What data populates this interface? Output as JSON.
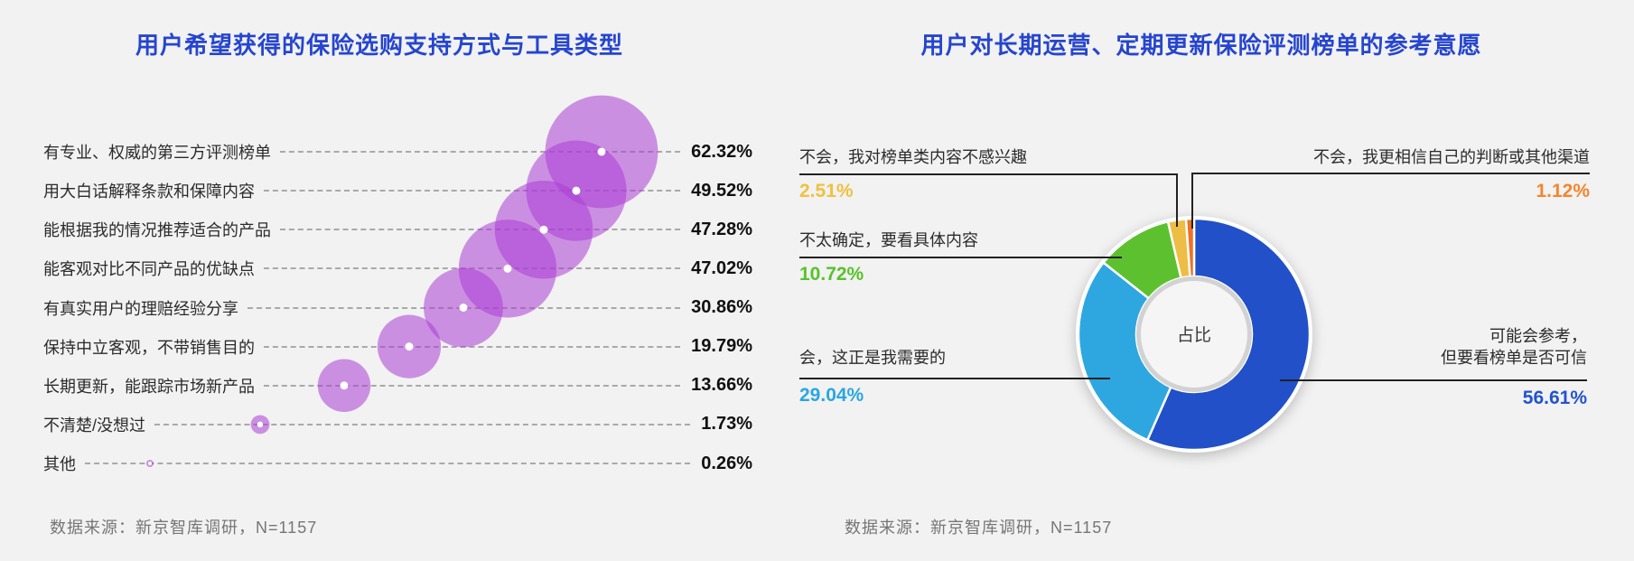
{
  "chart_data": [
    {
      "type": "scatter",
      "title": "用户希望获得的保险选购支持方式与工具类型",
      "categories": [
        "有专业、权威的第三方评测榜单",
        "用大白话解释条款和保障内容",
        "能根据我的情况推荐适合的产品",
        "能客观对比不同产品的优缺点",
        "有真实用户的理赔经验分享",
        "保持中立客观，不带销售目的",
        "长期更新，能跟踪市场新产品",
        "不清楚/没想过",
        "其他"
      ],
      "values": [
        62.32,
        49.52,
        47.28,
        47.02,
        30.86,
        19.79,
        13.66,
        1.73,
        0.26
      ],
      "value_labels": [
        "62.32%",
        "49.52%",
        "47.28%",
        "47.02%",
        "30.86%",
        "19.79%",
        "13.66%",
        "1.73%",
        "0.26%"
      ],
      "bubble_color": "rgba(172,62,214,0.55)",
      "xlabel": "",
      "ylabel": "",
      "grid": "dashed-row-lines",
      "source": "数据来源：新京智库调研，N=1157"
    },
    {
      "type": "pie",
      "title": "用户对长期运营、定期更新保险评测榜单的参考意愿",
      "center_label": "占比",
      "segments": [
        {
          "label": "可能会参考，但要看榜单是否可信",
          "label_lines": [
            "可能会参考，",
            "但要看榜单是否可信"
          ],
          "value": 56.61,
          "display": "56.61%",
          "color": "#2150c8",
          "value_color": "#2353cd"
        },
        {
          "label": "会，这正是我需要的",
          "value": 29.04,
          "display": "29.04%",
          "color": "#2ea7e0",
          "value_color": "#2aa6e0"
        },
        {
          "label": "不太确定，要看具体内容",
          "value": 10.72,
          "display": "10.72%",
          "color": "#5dc12f",
          "value_color": "#58c22a"
        },
        {
          "label": "不会，我对榜单类内容不感兴趣",
          "value": 2.51,
          "display": "2.51%",
          "color": "#eebd45",
          "value_color": "#f0c040"
        },
        {
          "label": "不会，我更相信自己的判断或其他渠道",
          "value": 1.12,
          "display": "1.12%",
          "color": "#ed7226",
          "value_color": "#f5852f"
        }
      ],
      "legend": "callout-labels",
      "source": "数据来源：新京智库调研，N=1157"
    }
  ]
}
